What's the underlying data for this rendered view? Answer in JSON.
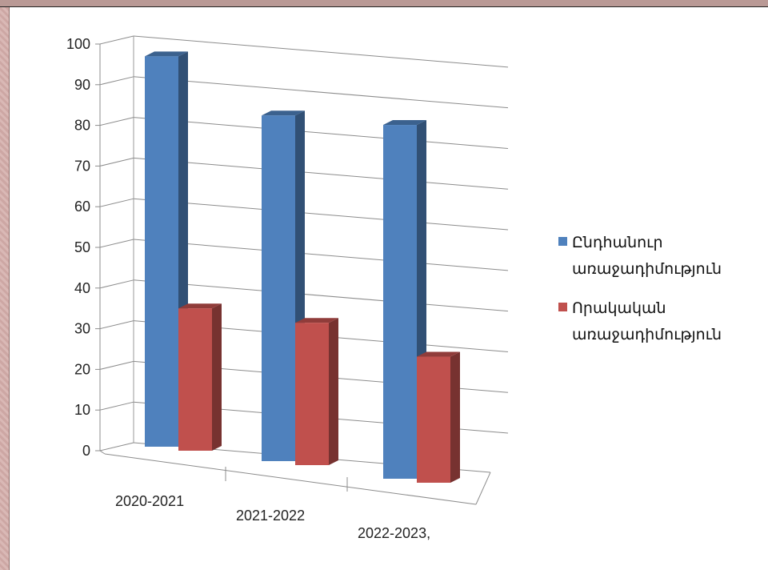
{
  "chart_data": {
    "type": "bar",
    "categories": [
      "2020-2021",
      "2021-2022",
      "2022-2023,"
    ],
    "series": [
      {
        "name": "Ընդհանուր առաջադիմություն",
        "values": [
          96,
          85,
          87
        ],
        "color": "#4f81bd"
      },
      {
        "name": "Որակական առաջադիմություն",
        "values": [
          35,
          35,
          31
        ],
        "color": "#c0504d"
      }
    ],
    "ylim": [
      0,
      100
    ],
    "yticks": [
      0,
      10,
      20,
      30,
      40,
      50,
      60,
      70,
      80,
      90,
      100
    ],
    "grid": true,
    "legend": "right",
    "three_d": true
  },
  "legend": {
    "series1_line1": "Ընդհանուր",
    "series1_line2": "առաջադիմություն",
    "series2_line1": "Որակական",
    "series2_line2": "առաջադիմություն"
  }
}
